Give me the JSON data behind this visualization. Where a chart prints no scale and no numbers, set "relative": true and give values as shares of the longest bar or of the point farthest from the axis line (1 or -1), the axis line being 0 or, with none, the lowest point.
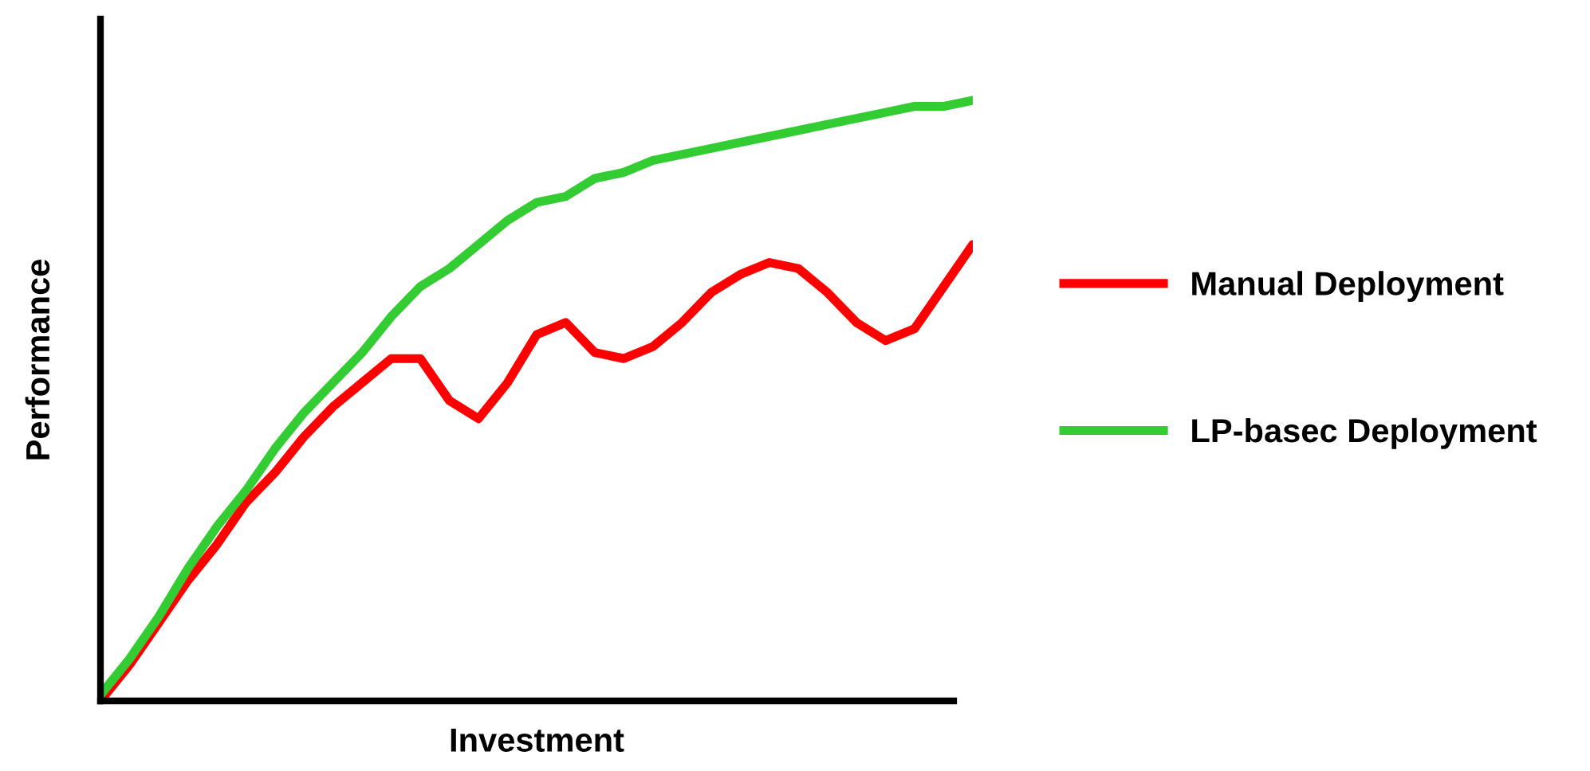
{
  "chart_data": {
    "type": "line",
    "relative": true,
    "xlabel": "Investment",
    "ylabel": "Performance",
    "legend": "right",
    "grid": false,
    "marker": "none",
    "line_style": "solid",
    "tick_labels": false,
    "categories": [
      null,
      null,
      null,
      null,
      null,
      null,
      null,
      null,
      null,
      null,
      null,
      null,
      null,
      null,
      null,
      null,
      null,
      null,
      null,
      null,
      null,
      null,
      null,
      null,
      null,
      null,
      null,
      null,
      null,
      null,
      null
    ],
    "series": [
      {
        "name": "Manual Deployment",
        "color": "#ff0000",
        "values": [
          0.0,
          0.06,
          0.13,
          0.2,
          0.26,
          0.33,
          0.38,
          0.44,
          0.49,
          0.53,
          0.57,
          0.57,
          0.5,
          0.47,
          0.53,
          0.61,
          0.63,
          0.58,
          0.57,
          0.59,
          0.63,
          0.68,
          0.71,
          0.73,
          0.72,
          0.68,
          0.63,
          0.6,
          0.62,
          0.69,
          0.76
        ]
      },
      {
        "name": "LP-basec Deployment",
        "color": "#33cc33",
        "values": [
          0.01,
          0.07,
          0.14,
          0.22,
          0.29,
          0.35,
          0.42,
          0.48,
          0.53,
          0.58,
          0.64,
          0.69,
          0.72,
          0.76,
          0.8,
          0.83,
          0.84,
          0.87,
          0.88,
          0.9,
          0.91,
          0.92,
          0.93,
          0.94,
          0.95,
          0.96,
          0.97,
          0.98,
          0.99,
          0.99,
          1.0
        ]
      }
    ]
  }
}
